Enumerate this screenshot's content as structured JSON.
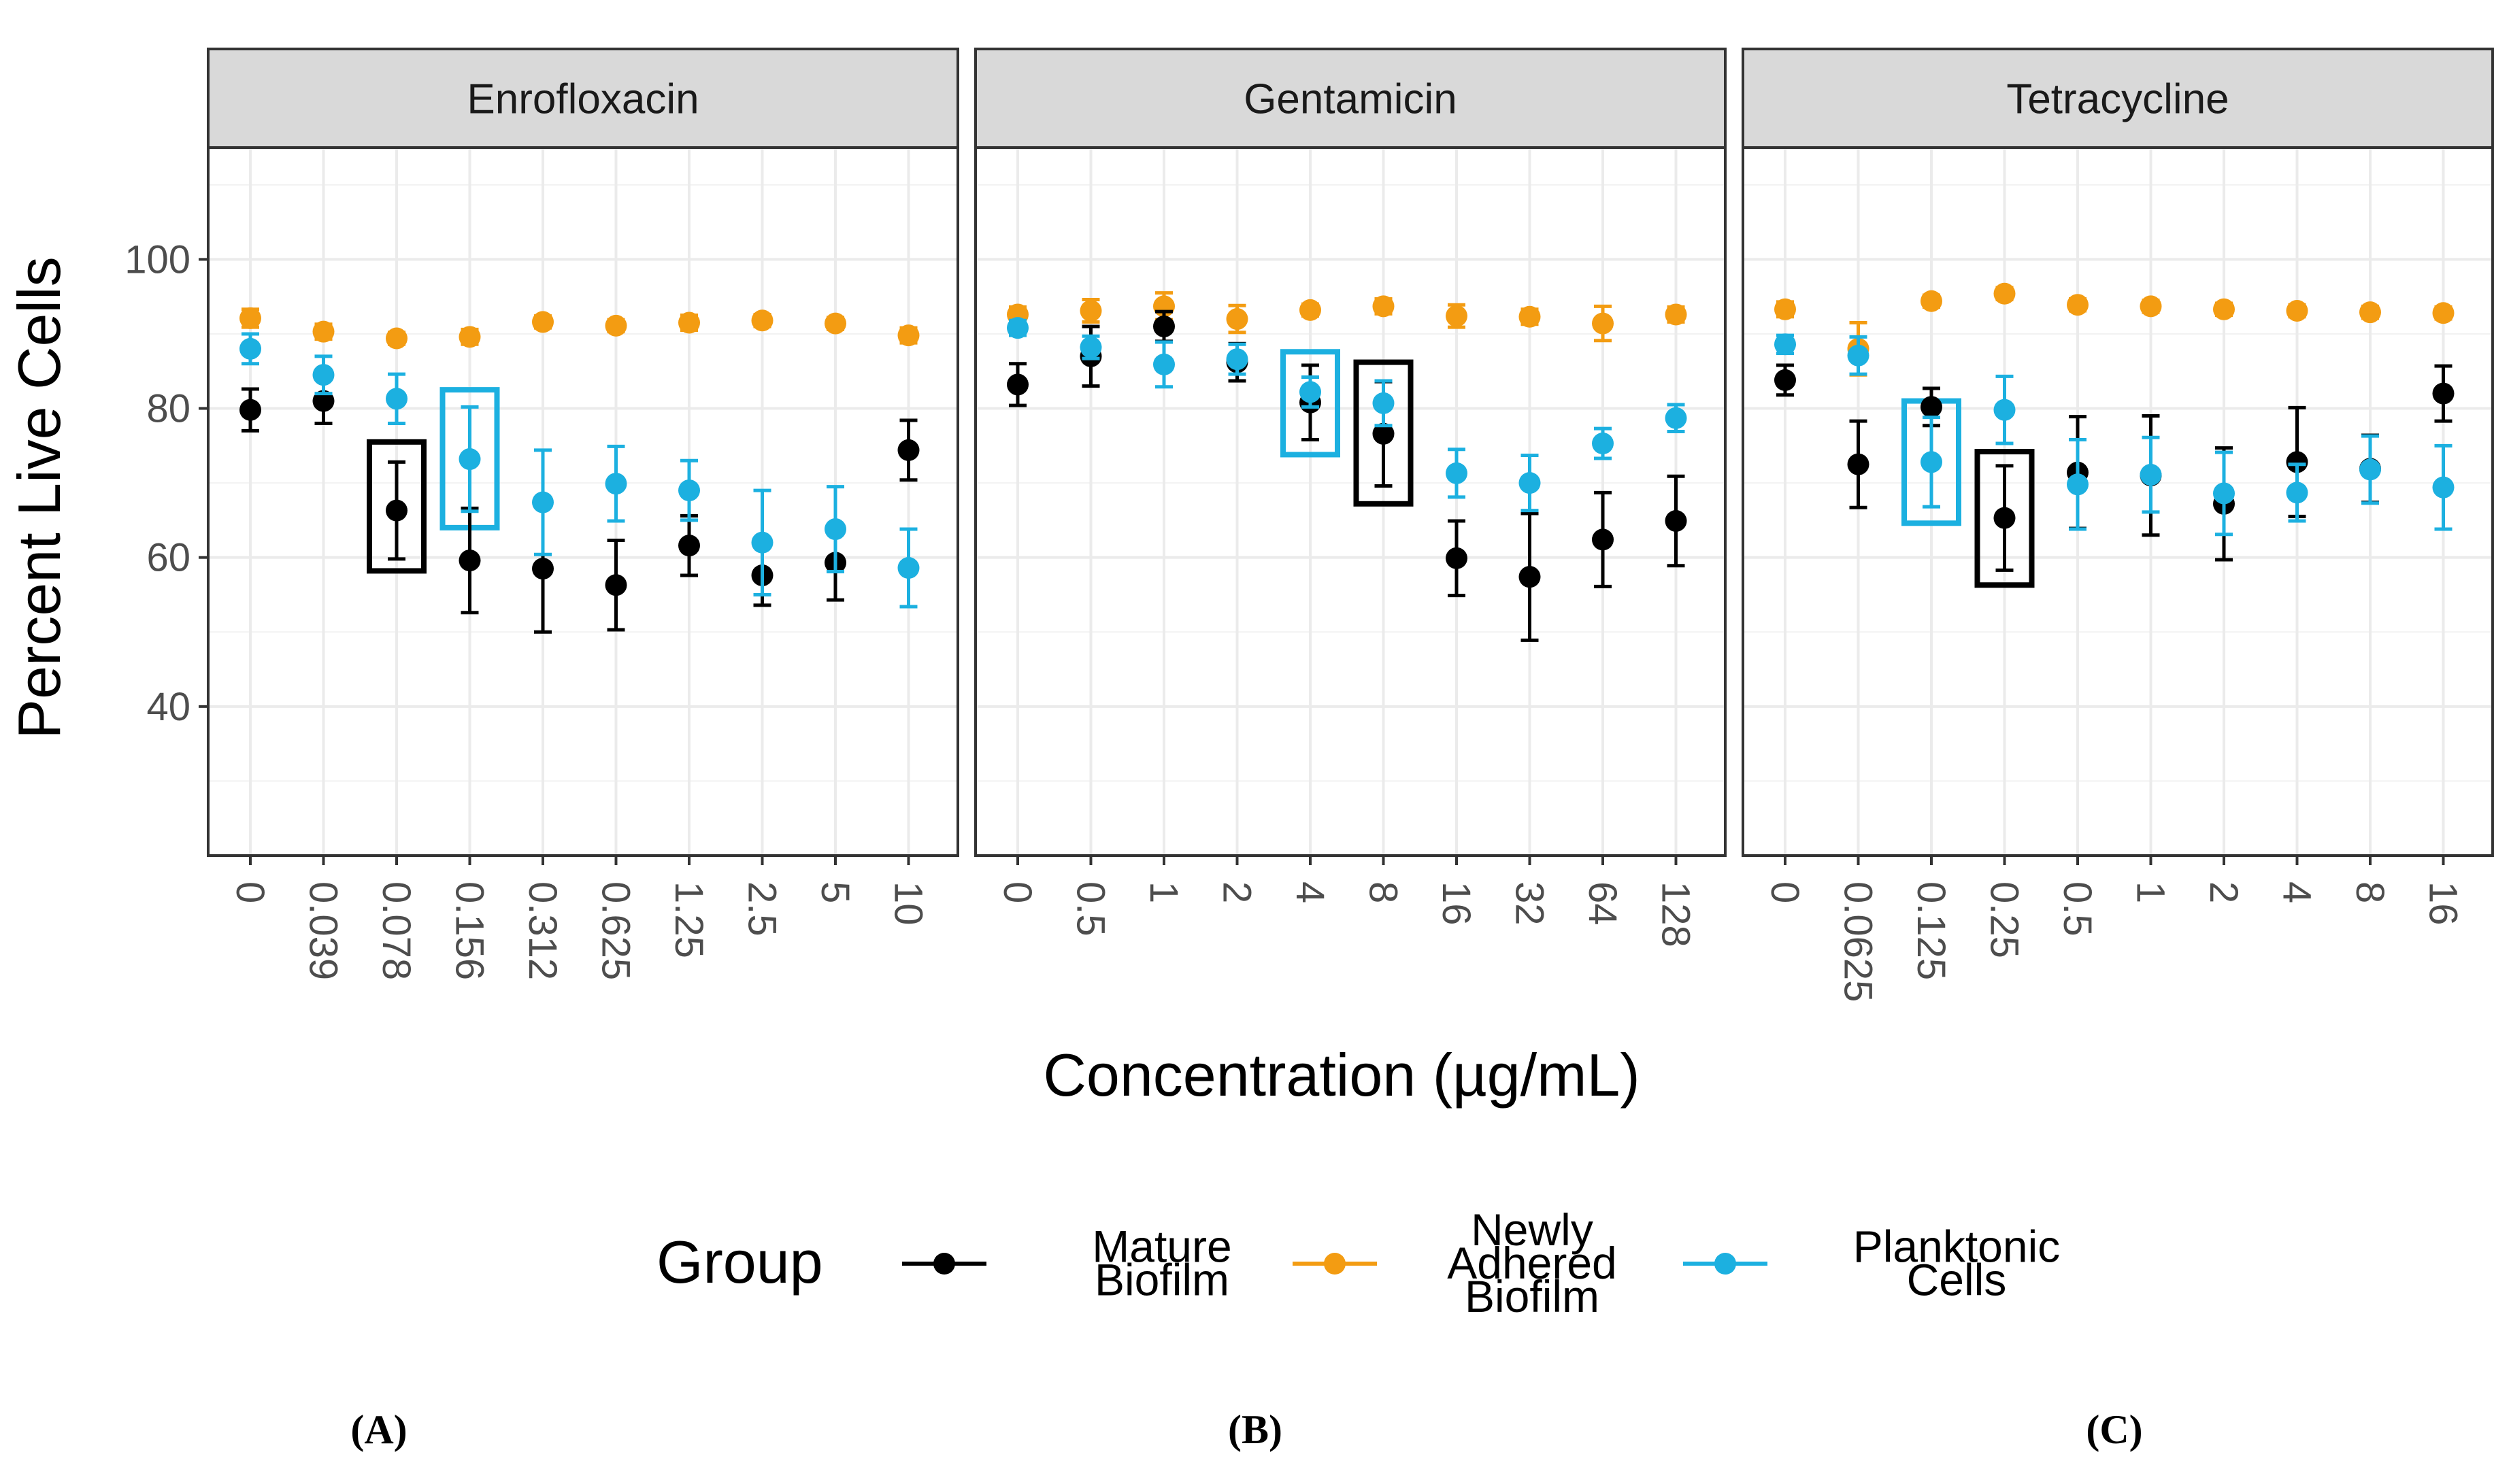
{
  "chart_data": {
    "type": "scatter",
    "ylabel": "Percent Live Cells",
    "xlabel": "Concentration (µg/mL)",
    "ylim": [
      20,
      115
    ],
    "yticks": [
      40,
      60,
      80,
      100
    ],
    "grid": true,
    "legend": {
      "title": "Group",
      "position": "bottom",
      "entries": [
        {
          "lines": [
            "Mature",
            "Biofilm"
          ],
          "color": "#000000"
        },
        {
          "lines": [
            "Newly",
            "Adhered",
            "Biofilm"
          ],
          "color": "#F39C12"
        },
        {
          "lines": [
            "Planktonic",
            "Cells"
          ],
          "color": "#1CB0E0"
        }
      ]
    },
    "panels": [
      {
        "title": "Enrofloxacin",
        "letter_open": "(",
        "letter": "A",
        "letter_close": ")",
        "categories": [
          "0",
          "0.039",
          "0.078",
          "0.156",
          "0.312",
          "0.625",
          "1.25",
          "2.5",
          "5",
          "10"
        ],
        "series": [
          {
            "name": "Mature Biofilm",
            "color": "#000000",
            "values": [
              79.8,
              81.0,
              66.3,
              59.6,
              58.5,
              56.3,
              61.6,
              57.6,
              59.3,
              74.4
            ],
            "err": [
              2.8,
              3.0,
              6.5,
              7.0,
              8.5,
              6.0,
              4.0,
              4.0,
              5.0,
              4.0
            ]
          },
          {
            "name": "Newly Adhered Biofilm",
            "color": "#F39C12",
            "values": [
              92.1,
              90.3,
              89.4,
              89.6,
              91.6,
              91.1,
              91.5,
              91.8,
              91.4,
              89.8
            ],
            "err": [
              1.2,
              1.0,
              0.8,
              1.0,
              0.8,
              0.8,
              1.0,
              0.8,
              0.8,
              1.0
            ]
          },
          {
            "name": "Planktonic Cells",
            "color": "#1CB0E0",
            "values": [
              88.0,
              84.5,
              81.3,
              73.2,
              67.4,
              69.9,
              69.0,
              62.0,
              63.8,
              58.6
            ],
            "err": [
              2.0,
              2.5,
              3.3,
              7.0,
              7.0,
              5.0,
              4.0,
              7.0,
              5.7,
              5.2
            ]
          }
        ],
        "highlights": [
          {
            "category": "0.078",
            "color": "#000000",
            "lo": 58.2,
            "hi": 75.5
          },
          {
            "category": "0.156",
            "color": "#1CB0E0",
            "lo": 64.0,
            "hi": 82.5
          }
        ]
      },
      {
        "title": "Gentamicin",
        "letter_open": "(",
        "letter": "B",
        "letter_close": ")",
        "categories": [
          "0",
          "0.5",
          "1",
          "2",
          "4",
          "8",
          "16",
          "32",
          "64",
          "128"
        ],
        "series": [
          {
            "name": "Mature Biofilm",
            "color": "#000000",
            "values": [
              83.2,
              87.0,
              91.0,
              86.2,
              80.8,
              76.6,
              59.9,
              57.4,
              62.4,
              64.9
            ],
            "err": [
              2.8,
              4.0,
              2.0,
              2.5,
              5.0,
              7.0,
              5.0,
              8.5,
              6.3,
              6.0
            ]
          },
          {
            "name": "Newly Adhered Biofilm",
            "color": "#F39C12",
            "values": [
              92.6,
              93.1,
              93.7,
              92.0,
              93.2,
              93.7,
              92.4,
              92.3,
              91.4,
              92.6
            ],
            "err": [
              1.0,
              1.5,
              1.8,
              1.8,
              0.8,
              1.0,
              1.5,
              1.0,
              2.3,
              1.0
            ]
          },
          {
            "name": "Planktonic Cells",
            "color": "#1CB0E0",
            "values": [
              90.8,
              88.2,
              85.9,
              86.6,
              82.2,
              80.7,
              71.3,
              70.0,
              75.3,
              78.7
            ],
            "err": [
              1.0,
              1.5,
              3.0,
              2.0,
              2.0,
              3.0,
              3.2,
              3.7,
              2.0,
              1.8
            ]
          }
        ],
        "highlights": [
          {
            "category": "4",
            "color": "#1CB0E0",
            "lo": 73.8,
            "hi": 87.6
          },
          {
            "category": "8",
            "color": "#000000",
            "lo": 67.2,
            "hi": 86.2
          }
        ]
      },
      {
        "title": "Tetracycline",
        "letter_open": "(",
        "letter": "C",
        "letter_close": ")",
        "categories": [
          "0",
          "0.0625",
          "0.125",
          "0.25",
          "0.5",
          "1",
          "2",
          "4",
          "8",
          "16"
        ],
        "series": [
          {
            "name": "Mature Biofilm",
            "color": "#000000",
            "values": [
              83.8,
              72.5,
              80.2,
              65.3,
              71.4,
              71.0,
              67.2,
              72.8,
              71.9,
              82.0
            ],
            "err": [
              2.0,
              5.8,
              2.5,
              7.0,
              7.5,
              8.0,
              7.5,
              7.3,
              4.5,
              3.7
            ]
          },
          {
            "name": "Newly Adhered Biofilm",
            "color": "#F39C12",
            "values": [
              93.3,
              88.0,
              94.4,
              95.4,
              93.9,
              93.7,
              93.3,
              93.1,
              92.9,
              92.8
            ],
            "err": [
              1.0,
              3.5,
              0.8,
              0.8,
              0.8,
              0.8,
              0.8,
              0.8,
              0.8,
              0.8
            ]
          },
          {
            "name": "Planktonic Cells",
            "color": "#1CB0E0",
            "values": [
              88.6,
              87.1,
              72.8,
              79.8,
              69.8,
              71.1,
              68.6,
              68.7,
              71.8,
              69.4
            ],
            "err": [
              1.2,
              2.5,
              6.0,
              4.5,
              6.0,
              5.0,
              5.5,
              3.8,
              4.5,
              5.6
            ]
          }
        ],
        "highlights": [
          {
            "category": "0.125",
            "color": "#1CB0E0",
            "lo": 64.6,
            "hi": 81.0
          },
          {
            "category": "0.25",
            "color": "#000000",
            "lo": 56.3,
            "hi": 74.2
          }
        ]
      }
    ]
  }
}
